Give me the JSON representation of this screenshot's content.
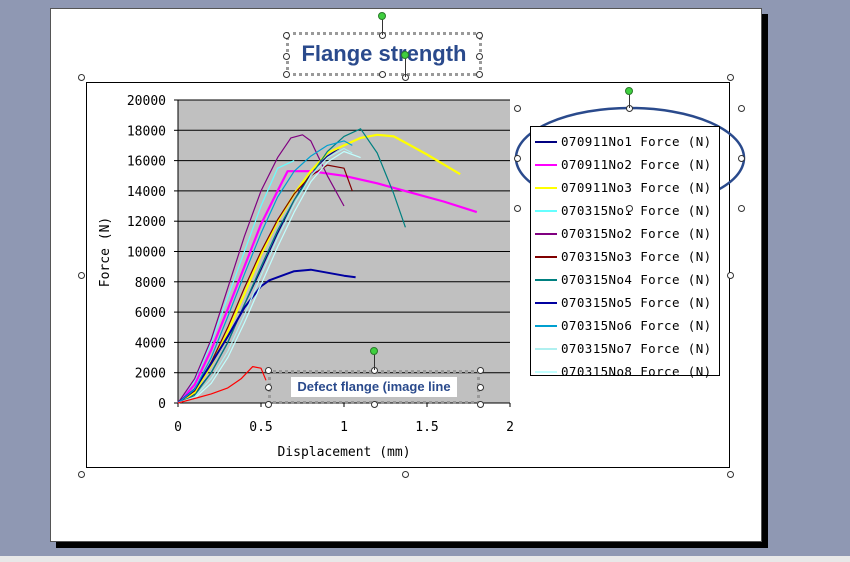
{
  "title": "Flange strength",
  "callout": "Defect flange  (image line",
  "colors": {
    "accent": "#2a4a8c",
    "plot_background": "#c0c0c0",
    "slide_backdrop": "#8f98b3"
  },
  "chart_data": {
    "type": "line",
    "title": "Flange strength",
    "xlabel": "Displacement (mm)",
    "ylabel": "Force (N)",
    "xlim": [
      0,
      2
    ],
    "ylim": [
      0,
      20000
    ],
    "x_ticks": [
      "0",
      "0.5",
      "1",
      "1.5",
      "2"
    ],
    "y_ticks": [
      "0",
      "2000",
      "4000",
      "6000",
      "8000",
      "10000",
      "12000",
      "14000",
      "16000",
      "18000",
      "20000"
    ],
    "grid": "horizontal",
    "legend_position": "right",
    "series": [
      {
        "name": "070911No1 Force (N)",
        "color": "#000080",
        "x": [
          0,
          0.1,
          0.2,
          0.3,
          0.4,
          0.5,
          0.6,
          0.7,
          0.8,
          0.9,
          0.97
        ],
        "y": [
          0,
          600,
          2000,
          4000,
          6500,
          8800,
          11200,
          13400,
          15200,
          16300,
          16800
        ]
      },
      {
        "name": "070911No2 Force (N)",
        "color": "#ff00ff",
        "x": [
          0,
          0.1,
          0.2,
          0.3,
          0.4,
          0.5,
          0.6,
          0.66,
          0.8,
          1.0,
          1.2,
          1.4,
          1.6,
          1.8
        ],
        "y": [
          0,
          1200,
          3500,
          6200,
          9000,
          11800,
          14000,
          15300,
          15300,
          15000,
          14500,
          13900,
          13300,
          12600
        ]
      },
      {
        "name": "070911No3 Force (N)",
        "color": "#ffff00",
        "x": [
          0,
          0.1,
          0.2,
          0.3,
          0.4,
          0.5,
          0.6,
          0.7,
          0.8,
          0.9,
          1.0,
          1.1,
          1.2,
          1.3,
          1.4,
          1.5,
          1.7
        ],
        "y": [
          0,
          700,
          2500,
          4700,
          7200,
          9800,
          12000,
          13800,
          15300,
          16500,
          17000,
          17500,
          17700,
          17600,
          17000,
          16400,
          15100
        ]
      },
      {
        "name": "070315No1 Force (N)",
        "color": "#66ffff",
        "x": [
          0,
          0.1,
          0.2,
          0.3,
          0.4,
          0.5,
          0.6,
          0.7
        ],
        "y": [
          0,
          1500,
          4000,
          7000,
          10000,
          13000,
          15500,
          16000
        ]
      },
      {
        "name": "070315No2 Force (N)",
        "color": "#800080",
        "x": [
          0,
          0.1,
          0.2,
          0.3,
          0.4,
          0.5,
          0.6,
          0.68,
          0.75,
          0.8,
          0.9,
          1.0
        ],
        "y": [
          0,
          1600,
          4200,
          7600,
          11000,
          14000,
          16200,
          17500,
          17700,
          17300,
          15000,
          13000
        ]
      },
      {
        "name": "070315No3 Force (N)",
        "color": "#800000",
        "x": [
          0,
          0.1,
          0.2,
          0.3,
          0.4,
          0.5,
          0.6,
          0.7,
          0.8,
          0.9,
          1.0,
          1.05
        ],
        "y": [
          0,
          800,
          2700,
          5000,
          7600,
          10000,
          12100,
          13800,
          15000,
          15700,
          15500,
          14000
        ]
      },
      {
        "name": "070315No4 Force (N)",
        "color": "#008080",
        "x": [
          0,
          0.1,
          0.2,
          0.3,
          0.4,
          0.5,
          0.6,
          0.7,
          0.8,
          0.9,
          1.0,
          1.1,
          1.2,
          1.3,
          1.37
        ],
        "y": [
          0,
          500,
          2000,
          4000,
          6500,
          9000,
          11400,
          13400,
          15000,
          16600,
          17600,
          18100,
          16500,
          13800,
          11600
        ]
      },
      {
        "name": "070315No5 Force (N)",
        "color": "#0000a0",
        "x": [
          0,
          0.1,
          0.2,
          0.3,
          0.4,
          0.5,
          0.55,
          0.65,
          0.7,
          0.8,
          0.9,
          1.0,
          1.07
        ],
        "y": [
          0,
          900,
          2600,
          4400,
          6300,
          7700,
          8100,
          8500,
          8700,
          8800,
          8600,
          8400,
          8300
        ]
      },
      {
        "name": "070315No6 Force (N)",
        "color": "#00a0d0",
        "x": [
          0,
          0.1,
          0.2,
          0.3,
          0.4,
          0.5,
          0.6,
          0.7,
          0.8,
          0.9,
          1.0,
          1.05
        ],
        "y": [
          0,
          900,
          3000,
          5700,
          8500,
          11200,
          13600,
          15300,
          16300,
          17000,
          17300,
          17000
        ]
      },
      {
        "name": "070315No7 Force (N)",
        "color": "#b0f0f0",
        "x": [
          0,
          0.1,
          0.2,
          0.3,
          0.4,
          0.5,
          0.6,
          0.7,
          0.8,
          0.9,
          1.0,
          1.05
        ],
        "y": [
          0,
          400,
          1600,
          3400,
          5800,
          8400,
          10900,
          13100,
          15000,
          16200,
          16800,
          16500
        ]
      },
      {
        "name": "070315No8 Force (N)",
        "color": "#c0ffff",
        "x": [
          0,
          0.1,
          0.2,
          0.3,
          0.4,
          0.5,
          0.6,
          0.7,
          0.8,
          0.9,
          1.0,
          1.1
        ],
        "y": [
          0,
          300,
          1300,
          3000,
          5300,
          7800,
          10300,
          12600,
          14600,
          15900,
          16600,
          16200
        ]
      },
      {
        "name": "",
        "color": "#ff0000",
        "x": [
          0,
          0.1,
          0.2,
          0.3,
          0.38,
          0.45,
          0.5,
          0.53
        ],
        "y": [
          0,
          300,
          600,
          1000,
          1600,
          2400,
          2300,
          1500
        ]
      }
    ]
  }
}
